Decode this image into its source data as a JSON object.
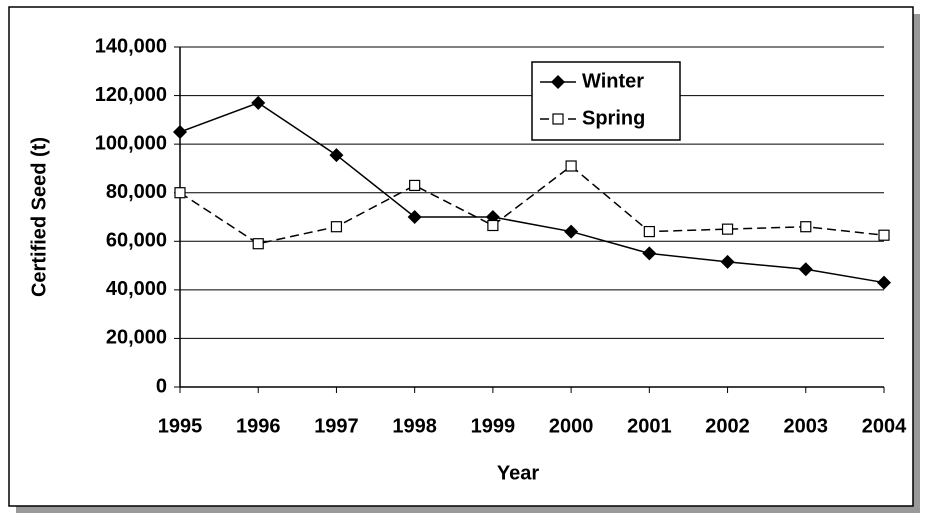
{
  "chart_data": {
    "type": "line",
    "xlabel": "Year",
    "ylabel": "Certified Seed (t)",
    "categories": [
      "1995",
      "1996",
      "1997",
      "1998",
      "1999",
      "2000",
      "2001",
      "2002",
      "2003",
      "2004"
    ],
    "series": [
      {
        "name": "Winter",
        "color": "#000000",
        "marker": "diamond",
        "dash": false,
        "values": [
          105000,
          117000,
          95500,
          70000,
          70000,
          64000,
          55000,
          51500,
          48500,
          43000
        ]
      },
      {
        "name": "Spring",
        "color": "#000000",
        "marker": "square",
        "dash": true,
        "values": [
          80000,
          59000,
          66000,
          83000,
          66500,
          91000,
          64000,
          65000,
          66000,
          62500
        ]
      }
    ],
    "ylim": [
      0,
      140000
    ],
    "yticks": [
      0,
      {
        "value": 20000,
        "label": "20,000"
      },
      {
        "value": 40000,
        "label": "40,000"
      },
      {
        "value": 60000,
        "label": "60,000"
      },
      {
        "value": 80000,
        "label": "80,000"
      },
      {
        "value": 100000,
        "label": "100,000"
      },
      {
        "value": 120000,
        "label": "120,000"
      },
      {
        "value": 140000,
        "label": "140,000"
      }
    ],
    "grid": true,
    "legend": "top-right"
  }
}
